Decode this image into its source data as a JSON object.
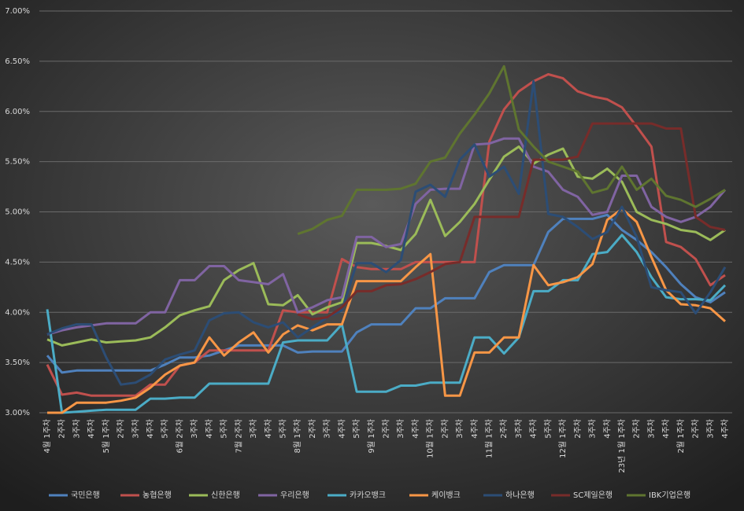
{
  "chart_data": {
    "type": "line",
    "categories": [
      "4월 1주차",
      "2주차",
      "3주차",
      "4주차",
      "5월 1주차",
      "2주차",
      "3주차",
      "4주차",
      "5주차",
      "6월 2주차",
      "3주차",
      "4주차",
      "5주차",
      "7월 2주차",
      "3주차",
      "4주차",
      "5주차",
      "8월 1주차",
      "2주차",
      "3주차",
      "4주차",
      "5주차",
      "9월 1주차",
      "2주차",
      "3주차",
      "4주차",
      "10월 1주차",
      "2주차",
      "3주차",
      "4주차",
      "11월 1주차",
      "2주차",
      "3주차",
      "4주차",
      "5주차",
      "12월 1주차",
      "2주차",
      "3주차",
      "4주차",
      "23년 1월 1주차",
      "2주차",
      "3주차",
      "4주차",
      "2월 1주차",
      "2주차",
      "3주차",
      "4주차"
    ],
    "ylim": [
      3,
      7
    ],
    "yticks": [
      {
        "value": 3,
        "label": "3.00%"
      },
      {
        "value": 3.5,
        "label": "3.50%"
      },
      {
        "value": 4,
        "label": "4.00%"
      },
      {
        "value": 4.5,
        "label": "4.50%"
      },
      {
        "value": 5,
        "label": "5.00%"
      },
      {
        "value": 5.5,
        "label": "5.50%"
      },
      {
        "value": 6,
        "label": "6.00%"
      },
      {
        "value": 6.5,
        "label": "6.50%"
      },
      {
        "value": 7,
        "label": "7.00%"
      }
    ],
    "grid": true,
    "legend": "bottom",
    "series": [
      {
        "name": "국민은행",
        "color": "#4f81bd",
        "values": [
          3.57,
          3.4,
          3.42,
          3.42,
          3.42,
          3.42,
          3.42,
          3.42,
          3.48,
          3.55,
          3.55,
          3.57,
          3.62,
          3.67,
          3.67,
          3.67,
          3.67,
          3.6,
          3.61,
          3.61,
          3.61,
          3.8,
          3.88,
          3.88,
          3.88,
          4.04,
          4.04,
          4.14,
          4.14,
          4.14,
          4.4,
          4.47,
          4.47,
          4.47,
          4.8,
          4.93,
          4.93,
          4.93,
          4.97,
          4.82,
          4.72,
          4.6,
          4.45,
          4.28,
          4.15,
          4.1,
          4.2
        ]
      },
      {
        "name": "농협은행",
        "color": "#c0504d",
        "values": [
          3.48,
          3.18,
          3.2,
          3.17,
          3.17,
          3.17,
          3.17,
          3.28,
          3.28,
          3.47,
          3.5,
          3.62,
          3.62,
          3.62,
          3.62,
          3.62,
          4.02,
          4.0,
          4.0,
          4.0,
          4.53,
          4.45,
          4.43,
          4.43,
          4.43,
          4.5,
          4.5,
          4.5,
          4.5,
          4.5,
          5.7,
          6.02,
          6.2,
          6.3,
          6.37,
          6.33,
          6.2,
          6.15,
          6.12,
          6.04,
          5.85,
          5.65,
          4.7,
          4.65,
          4.53,
          4.27,
          4.37
        ]
      },
      {
        "name": "신한은행",
        "color": "#9bbb59",
        "values": [
          3.73,
          3.67,
          3.7,
          3.73,
          3.7,
          3.71,
          3.72,
          3.75,
          3.85,
          3.97,
          4.02,
          4.06,
          4.32,
          4.42,
          4.49,
          4.08,
          4.07,
          4.17,
          3.98,
          4.05,
          4.1,
          4.69,
          4.69,
          4.66,
          4.62,
          4.78,
          5.12,
          4.76,
          4.9,
          5.08,
          5.32,
          5.55,
          5.65,
          5.48,
          5.57,
          5.63,
          5.35,
          5.33,
          5.43,
          5.3,
          5.0,
          4.92,
          4.88,
          4.82,
          4.8,
          4.72,
          4.82
        ]
      },
      {
        "name": "우리은행",
        "color": "#8064a2",
        "values": [
          3.78,
          3.82,
          3.85,
          3.87,
          3.89,
          3.89,
          3.89,
          4.0,
          4.0,
          4.32,
          4.32,
          4.46,
          4.46,
          4.32,
          4.3,
          4.28,
          4.38,
          4.0,
          4.05,
          4.12,
          4.15,
          4.75,
          4.75,
          4.65,
          4.68,
          5.08,
          5.22,
          5.23,
          5.23,
          5.67,
          5.68,
          5.73,
          5.73,
          5.45,
          5.4,
          5.22,
          5.15,
          4.97,
          5.0,
          5.36,
          5.36,
          5.05,
          4.95,
          4.9,
          4.95,
          5.05,
          5.22
        ]
      },
      {
        "name": "카카오뱅크",
        "color": "#4bacc6",
        "values": [
          4.03,
          3.0,
          3.01,
          3.02,
          3.03,
          3.03,
          3.03,
          3.14,
          3.14,
          3.15,
          3.15,
          3.29,
          3.29,
          3.29,
          3.29,
          3.29,
          3.7,
          3.72,
          3.72,
          3.72,
          3.88,
          3.21,
          3.21,
          3.21,
          3.27,
          3.27,
          3.3,
          3.3,
          3.3,
          3.75,
          3.75,
          3.59,
          3.75,
          4.21,
          4.21,
          4.32,
          4.32,
          4.58,
          4.6,
          4.77,
          4.6,
          4.35,
          4.15,
          4.13,
          4.13,
          4.12,
          4.27
        ]
      },
      {
        "name": "케이뱅크",
        "color": "#f79646",
        "values": [
          3.0,
          3.0,
          3.1,
          3.1,
          3.1,
          3.12,
          3.15,
          3.25,
          3.38,
          3.47,
          3.5,
          3.75,
          3.57,
          3.7,
          3.8,
          3.6,
          3.78,
          3.87,
          3.82,
          3.88,
          3.88,
          4.31,
          4.31,
          4.31,
          4.31,
          4.45,
          4.58,
          3.17,
          3.17,
          3.6,
          3.6,
          3.75,
          3.75,
          4.47,
          4.27,
          4.3,
          4.35,
          4.48,
          4.92,
          5.03,
          4.9,
          4.55,
          4.22,
          4.08,
          4.07,
          4.04,
          3.91
        ]
      },
      {
        "name": "하나은행",
        "color": "#2c4d75",
        "values": [
          3.78,
          3.84,
          3.88,
          3.88,
          3.55,
          3.28,
          3.3,
          3.38,
          3.53,
          3.58,
          3.62,
          3.92,
          3.99,
          4.0,
          3.9,
          3.85,
          3.9,
          3.75,
          3.85,
          3.95,
          4.02,
          4.49,
          4.49,
          4.4,
          4.52,
          5.2,
          5.27,
          5.15,
          5.52,
          5.67,
          5.35,
          5.45,
          5.18,
          6.3,
          4.98,
          4.95,
          4.85,
          4.73,
          4.8,
          5.05,
          4.75,
          4.25,
          4.22,
          4.2,
          3.99,
          4.2,
          4.45
        ]
      },
      {
        "name": "SC제일은행",
        "color": "#772c2a",
        "values": [
          null,
          null,
          null,
          null,
          null,
          null,
          null,
          null,
          null,
          null,
          null,
          null,
          null,
          null,
          null,
          null,
          null,
          3.98,
          3.93,
          3.95,
          4.05,
          4.21,
          4.21,
          4.27,
          4.28,
          4.33,
          4.4,
          4.48,
          4.5,
          4.95,
          4.95,
          4.95,
          4.95,
          5.52,
          5.52,
          5.52,
          5.55,
          5.88,
          5.88,
          5.88,
          5.88,
          5.88,
          5.83,
          5.83,
          4.95,
          4.85,
          4.82
        ]
      },
      {
        "name": "IBK기업은행",
        "color": "#5f7530",
        "values": [
          null,
          null,
          null,
          null,
          null,
          null,
          null,
          null,
          null,
          null,
          null,
          null,
          null,
          null,
          null,
          null,
          null,
          4.78,
          4.83,
          4.92,
          4.96,
          5.22,
          5.22,
          5.22,
          5.23,
          5.28,
          5.5,
          5.54,
          5.78,
          5.97,
          6.18,
          6.45,
          5.82,
          5.65,
          5.5,
          5.45,
          5.4,
          5.19,
          5.23,
          5.45,
          5.22,
          5.33,
          5.16,
          5.12,
          5.05,
          5.13,
          5.22
        ]
      }
    ]
  }
}
